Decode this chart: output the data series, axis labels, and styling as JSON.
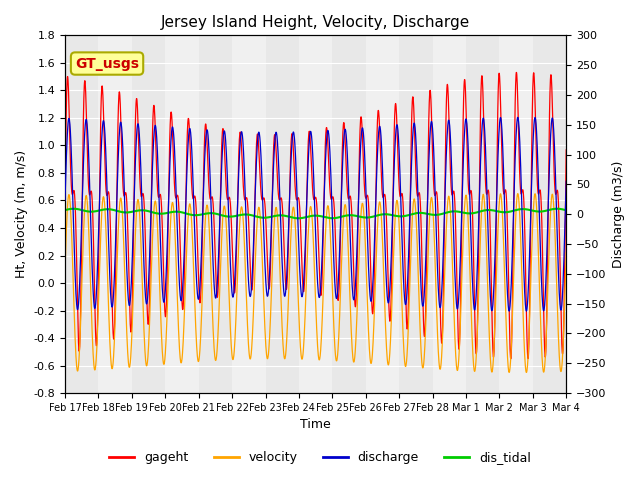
{
  "title": "Jersey Island Height, Velocity, Discharge",
  "xlabel": "Time",
  "ylabel_left": "Ht, Velocity (m, m/s)",
  "ylabel_right": "Discharge (m3/s)",
  "ylim_left": [
    -0.8,
    1.8
  ],
  "ylim_right": [
    -300,
    300
  ],
  "xlim_start": 0,
  "xlim_end": 15,
  "xtick_labels": [
    "Feb 17",
    "Feb 18",
    "Feb 19",
    "Feb 20",
    "Feb 21",
    "Feb 22",
    "Feb 23",
    "Feb 24",
    "Feb 25",
    "Feb 26",
    "Feb 27",
    "Feb 28",
    "Mar 1",
    "Mar 2",
    "Mar 3",
    "Mar 4"
  ],
  "colors": {
    "gageht": "#FF0000",
    "velocity": "#FFA500",
    "discharge": "#0000CC",
    "dis_tidal": "#00CC00"
  },
  "legend_label": "GT_usgs",
  "legend_color_text": "#CC0000",
  "legend_bg": "#FFFF99",
  "legend_border": "#AAAA00",
  "plot_bg": "#D8D8D8",
  "band_even": "#E8E8E8",
  "band_odd": "#F0F0F0",
  "fig_bg": "#FFFFFF",
  "grid_color": "#FFFFFF",
  "yticks_left": [
    -0.8,
    -0.6,
    -0.4,
    -0.2,
    0.0,
    0.2,
    0.4,
    0.6,
    0.8,
    1.0,
    1.2,
    1.4,
    1.6,
    1.8
  ],
  "yticks_right": [
    -300,
    -250,
    -200,
    -150,
    -100,
    -50,
    0,
    50,
    100,
    150,
    200,
    250,
    300
  ]
}
